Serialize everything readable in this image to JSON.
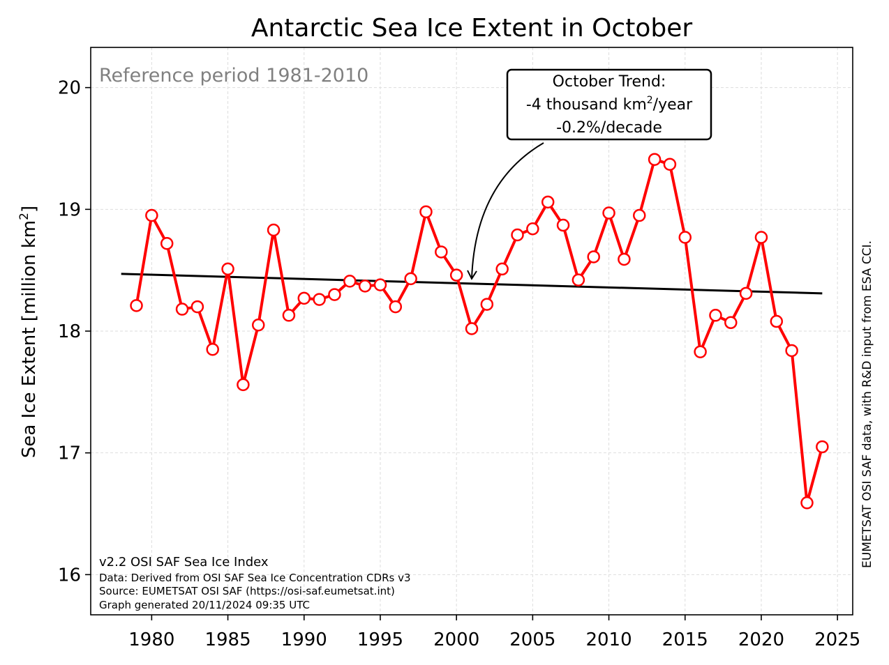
{
  "chart_data": {
    "type": "line",
    "title": "Antarctic Sea Ice Extent in October",
    "xlabel": "",
    "ylabel": "Sea Ice Extent [million km",
    "ylabel_sup": "2",
    "ylabel_end": "]",
    "xlim": [
      1976,
      2026
    ],
    "ylim": [
      15.67,
      20.33
    ],
    "xticks": [
      1980,
      1985,
      1990,
      1995,
      2000,
      2005,
      2010,
      2015,
      2020,
      2025
    ],
    "yticks": [
      16,
      17,
      18,
      19,
      20
    ],
    "grid": true,
    "x": [
      1979,
      1980,
      1981,
      1982,
      1983,
      1984,
      1985,
      1986,
      1987,
      1988,
      1989,
      1990,
      1991,
      1992,
      1993,
      1994,
      1995,
      1996,
      1997,
      1998,
      1999,
      2000,
      2001,
      2002,
      2003,
      2004,
      2005,
      2006,
      2007,
      2008,
      2009,
      2010,
      2011,
      2012,
      2013,
      2014,
      2015,
      2016,
      2017,
      2018,
      2019,
      2020,
      2021,
      2022,
      2023,
      2024
    ],
    "series": [
      {
        "color": "#ff0000",
        "values": [
          18.21,
          18.95,
          18.72,
          18.18,
          18.2,
          17.85,
          18.51,
          17.56,
          18.05,
          18.83,
          18.13,
          18.27,
          18.26,
          18.3,
          18.41,
          18.37,
          18.38,
          18.2,
          18.43,
          18.98,
          18.65,
          18.46,
          18.02,
          18.22,
          18.51,
          18.79,
          18.84,
          19.06,
          18.87,
          18.42,
          18.61,
          18.97,
          18.59,
          18.95,
          19.41,
          19.37,
          18.77,
          17.83,
          18.13,
          18.07,
          18.31,
          18.77,
          18.08,
          17.84,
          16.59,
          17.05
        ]
      }
    ],
    "trend": {
      "x": [
        1978,
        2024
      ],
      "y": [
        18.47,
        18.31
      ],
      "color": "#000000"
    },
    "annotations": {
      "reference": "Reference period 1981-2010",
      "trend_box": {
        "line1": "October Trend:",
        "line2_pre": "-4 thousand km",
        "line2_sup": "2",
        "line2_post": "/year",
        "line3": "-0.2%/decade",
        "arrow_to": [
          2001,
          18.43
        ]
      },
      "credits": [
        "v2.2 OSI SAF Sea Ice Index",
        "Data: Derived from OSI SAF Sea Ice Concentration CDRs v3",
        "Source: EUMETSAT OSI SAF (https://osi-saf.eumetsat.int)",
        "Graph generated 20/11/2024 09:35 UTC"
      ],
      "side_note": "EUMETSAT OSI SAF data, with R&D input from ESA CCI."
    }
  }
}
